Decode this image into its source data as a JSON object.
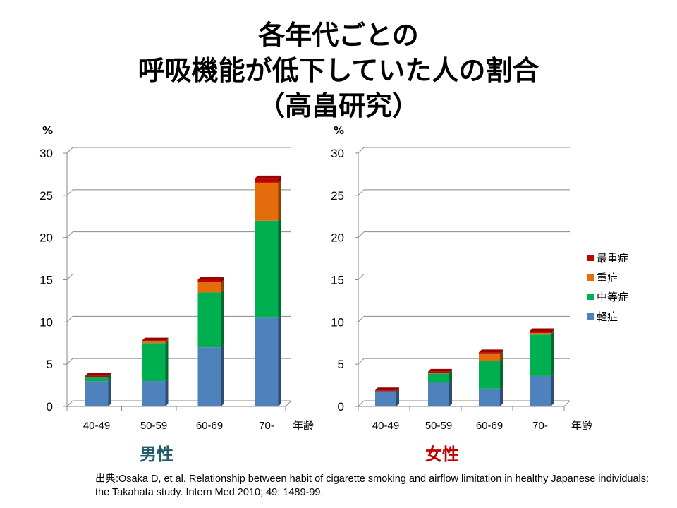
{
  "title": {
    "line1": "各年代ごとの",
    "line2": "呼吸機能が低下していた人の割合",
    "line3": "（高畠研究）"
  },
  "source": "出典:Osaka D, et al. Relationship between habit of cigarette smoking and airflow limitation in healthy  Japanese individuals: the Takahata study. Intern  Med 2010; 49: 1489-99.",
  "colors": {
    "軽症": "#4F81BD",
    "中等症": "#00B050",
    "重症": "#E46C0A",
    "最重症": "#C00000"
  },
  "legend": [
    {
      "label": "最重症",
      "color": "#C00000"
    },
    {
      "label": "重症",
      "color": "#E46C0A"
    },
    {
      "label": "中等症",
      "color": "#00B050"
    },
    {
      "label": "軽症",
      "color": "#4F81BD"
    }
  ],
  "chart_data": [
    {
      "type": "bar",
      "stacked": true,
      "three_d": true,
      "title": "男性",
      "title_color": "#1F5C6B",
      "ylabel": "%",
      "xlabel": "年齢",
      "ylim": [
        0,
        30
      ],
      "yticks": [
        "0",
        "5",
        "10",
        "15",
        "20",
        "25",
        "30"
      ],
      "grid": true,
      "categories": [
        "40-49",
        "50-59",
        "60-69",
        "70-"
      ],
      "series": [
        {
          "name": "軽症",
          "values": [
            3.0,
            3.0,
            7.0,
            10.5
          ]
        },
        {
          "name": "中等症",
          "values": [
            0.5,
            4.5,
            6.5,
            11.5
          ]
        },
        {
          "name": "重症",
          "values": [
            0,
            0.2,
            1.2,
            4.5
          ]
        },
        {
          "name": "最重症",
          "values": [
            0.1,
            0.1,
            0.3,
            0.5
          ]
        }
      ]
    },
    {
      "type": "bar",
      "stacked": true,
      "three_d": true,
      "title": "女性",
      "title_color": "#C00000",
      "ylabel": "%",
      "xlabel": "年齢",
      "ylim": [
        0,
        30
      ],
      "yticks": [
        "0",
        "5",
        "10",
        "15",
        "20",
        "25",
        "30"
      ],
      "grid": true,
      "legend_position": "right",
      "categories": [
        "40-49",
        "50-59",
        "60-69",
        "70-"
      ],
      "series": [
        {
          "name": "軽症",
          "values": [
            1.8,
            2.8,
            2.1,
            3.6
          ]
        },
        {
          "name": "中等症",
          "values": [
            0,
            1.1,
            3.3,
            4.9
          ]
        },
        {
          "name": "重症",
          "values": [
            0,
            0.1,
            0.8,
            0.2
          ]
        },
        {
          "name": "最重症",
          "values": [
            0.1,
            0.1,
            0.2,
            0.2
          ]
        }
      ]
    }
  ]
}
